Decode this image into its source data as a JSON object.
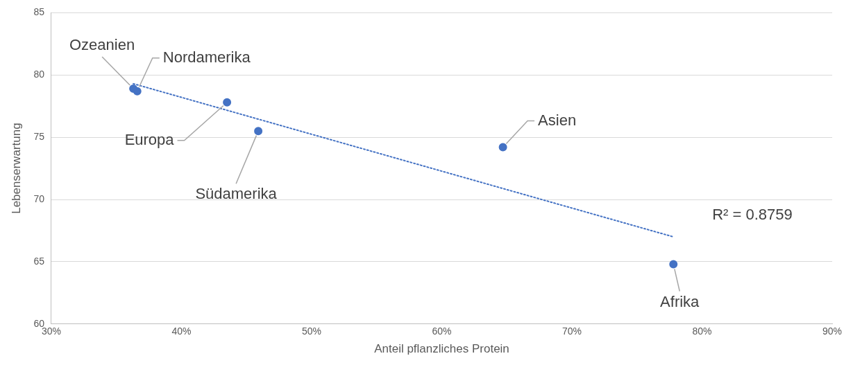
{
  "chart_data": {
    "type": "scatter",
    "xlabel": "Anteil pflanzliches Protein",
    "ylabel": "Lebenserwartung",
    "series": [
      {
        "type": "scatter",
        "color": "#4472c4",
        "x": [
          36.3,
          36.6,
          43.5,
          45.9,
          64.7,
          77.8
        ],
        "values": [
          78.9,
          78.7,
          77.8,
          75.5,
          74.2,
          64.8
        ]
      },
      {
        "type": "line",
        "color": "#4472c4",
        "line_style": "dotted",
        "marker": "none",
        "x": [
          36.3,
          77.8
        ],
        "values": [
          79.3,
          67.0
        ]
      }
    ],
    "marker": "circle",
    "xlim": [
      30,
      90
    ],
    "xticks": [
      {
        "value": 30,
        "label": "30%"
      },
      {
        "value": 40,
        "label": "40%"
      },
      {
        "value": 50,
        "label": "50%"
      },
      {
        "value": 60,
        "label": "60%"
      },
      {
        "value": 70,
        "label": "70%"
      },
      {
        "value": 80,
        "label": "80%"
      },
      {
        "value": 90,
        "label": "90%"
      }
    ],
    "ylim": [
      60,
      85
    ],
    "yticks": [
      60,
      65,
      70,
      75,
      80,
      85
    ],
    "grid": "y",
    "legend": false,
    "annotations": [
      {
        "text": "Ozeanien",
        "x": 36.3,
        "y": 78.9
      },
      {
        "text": "Nordamerika",
        "x": 36.6,
        "y": 78.7
      },
      {
        "text": "Europa",
        "x": 43.5,
        "y": 77.8
      },
      {
        "text": "Südamerika",
        "x": 45.9,
        "y": 75.5
      },
      {
        "text": "Asien",
        "x": 64.7,
        "y": 74.2
      },
      {
        "text": "Afrika",
        "x": 77.8,
        "y": 64.8
      },
      "R² = 0.8759"
    ]
  }
}
